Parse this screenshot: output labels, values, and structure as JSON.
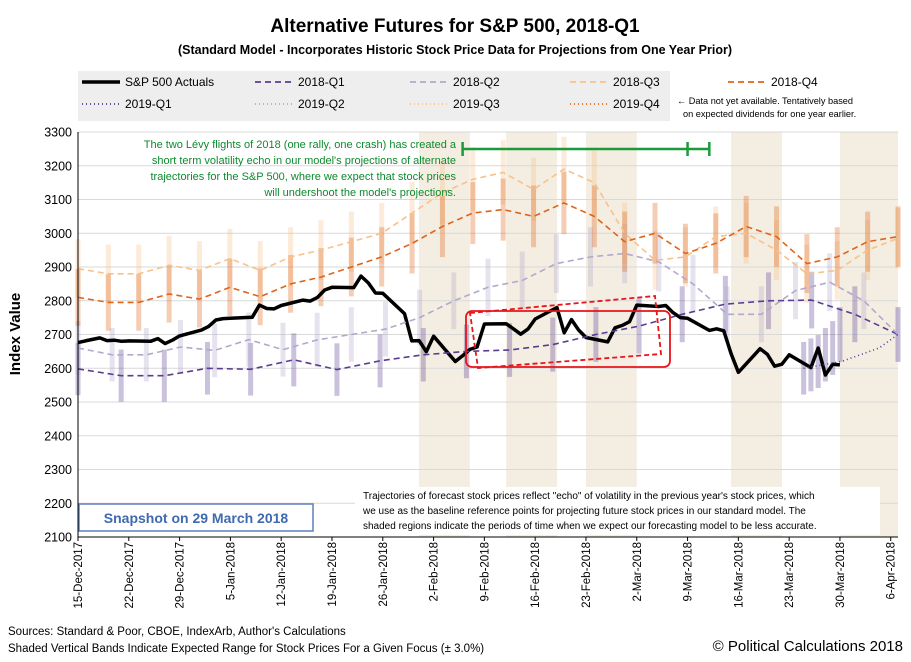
{
  "chart_data": {
    "type": "line",
    "title": "Alternative Futures for S&P 500, 2018-Q1",
    "subtitle": "(Standard Model - Incorporates Historic Stock Price Data for Projections from One Year Prior)",
    "ylabel": "Index Value",
    "xlabel": "",
    "ylim": [
      2100,
      3300
    ],
    "y_ticks": [
      "2100",
      "2200",
      "2300",
      "2400",
      "2500",
      "2600",
      "2700",
      "2800",
      "2900",
      "3000",
      "3100",
      "3200",
      "3300"
    ],
    "x_ticks": [
      "15-Dec-2017",
      "22-Dec-2017",
      "29-Dec-2017",
      "5-Jan-2018",
      "12-Jan-2018",
      "19-Jan-2018",
      "26-Jan-2018",
      "2-Feb-2018",
      "9-Feb-2018",
      "16-Feb-2018",
      "23-Feb-2018",
      "2-Mar-2018",
      "9-Mar-2018",
      "16-Mar-2018",
      "23-Mar-2018",
      "30-Mar-2018",
      "6-Apr-2018"
    ],
    "x_range_days": [
      0,
      113
    ],
    "band_pct": 3.0,
    "series": [
      {
        "name": "S&P 500 Actuals",
        "key": "actuals",
        "color": "#000000",
        "x": [
          0,
          1,
          3,
          4,
          5,
          6,
          7,
          10,
          11,
          12,
          13,
          14,
          17,
          18,
          19,
          20,
          21,
          24,
          25,
          26,
          27,
          28,
          31,
          32,
          33,
          34,
          35,
          38,
          39,
          40,
          41,
          42,
          45,
          46,
          47,
          48,
          49,
          52,
          53,
          54,
          55,
          56,
          59,
          60,
          61,
          62,
          63,
          66,
          67,
          68,
          69,
          70,
          73,
          74,
          75,
          76,
          77,
          80,
          81,
          82,
          83,
          84,
          87,
          88,
          89,
          90,
          91,
          94,
          95,
          96,
          97,
          98,
          101,
          102,
          103,
          104,
          105
        ],
        "values": [
          2676,
          2681,
          2690,
          2682,
          2683,
          2680,
          2681,
          2680,
          2688,
          2673,
          2683,
          2696,
          2713,
          2724,
          2743,
          2747,
          2748,
          2751,
          2787,
          2777,
          2776,
          2786,
          2802,
          2799,
          2810,
          2832,
          2840,
          2839,
          2873,
          2853,
          2823,
          2822,
          2762,
          2681,
          2682,
          2649,
          2695,
          2620,
          2637,
          2656,
          2663,
          2731,
          2732,
          2717,
          2701,
          2716,
          2746,
          2780,
          2705,
          2744,
          2713,
          2691,
          2678,
          2720,
          2727,
          2738,
          2787,
          2783,
          2786,
          2765,
          2750,
          2748,
          2712,
          2717,
          2711,
          2643,
          2588,
          2658,
          2641,
          2606,
          2612,
          2640,
          2602,
          2660,
          2580,
          2612,
          2610
        ]
      },
      {
        "name": "2018-Q1",
        "key": "q1_2018",
        "color": "#5a3d91",
        "dash": "6,4",
        "values": [
          2598,
          2578,
          2578,
          2600,
          2597,
          2625,
          2596,
          2622,
          2640,
          2650,
          2654,
          2670,
          2700,
          2725,
          2760,
          2790,
          2800,
          2802,
          2760,
          2700
        ]
      },
      {
        "name": "2018-Q2",
        "key": "q2_2018",
        "color": "#b2a8cc",
        "dash": "6,4",
        "values": [
          2660,
          2640,
          2640,
          2663,
          2653,
          2685,
          2655,
          2684,
          2700,
          2716,
          2750,
          2800,
          2840,
          2860,
          2910,
          2930,
          2940,
          2915,
          2850,
          2760,
          2760,
          2830,
          2855,
          2800,
          2700
        ]
      },
      {
        "name": "2018-Q3",
        "key": "q3_2018",
        "color": "#f7c28a",
        "dash": "6,4",
        "values": [
          2895,
          2880,
          2880,
          2905,
          2890,
          2925,
          2890,
          2930,
          2950,
          2975,
          3000,
          3060,
          3120,
          3160,
          3180,
          3130,
          3190,
          3150,
          3000,
          2920,
          2930,
          2990,
          3000,
          2950,
          2880,
          2890,
          2950,
          2985
        ]
      },
      {
        "name": "2018-Q4",
        "key": "q4_2018",
        "color": "#e06418",
        "dash": "6,4",
        "values": [
          2810,
          2795,
          2795,
          2820,
          2805,
          2840,
          2812,
          2850,
          2870,
          2900,
          2930,
          2970,
          3020,
          3060,
          3070,
          3050,
          3090,
          3050,
          2975,
          3000,
          2940,
          2970,
          3020,
          2990,
          2910,
          2930,
          2975,
          2990
        ]
      },
      {
        "name": "2019-Q1",
        "key": "q1_2019",
        "color": "#5a3d91",
        "dash": "1,3",
        "values": [
          2600,
          2610,
          2620,
          2640,
          2660,
          2700
        ]
      },
      {
        "name": "2019-Q2",
        "key": "q2_2019",
        "color": "#b2a8cc",
        "dash": "1,3",
        "values": []
      },
      {
        "name": "2019-Q3",
        "key": "q3_2019",
        "color": "#f7c28a",
        "dash": "1,3",
        "values": []
      },
      {
        "name": "2019-Q4",
        "key": "q4_2019",
        "color": "#e06418",
        "dash": "1,3",
        "values": []
      }
    ],
    "shaded_periods_days": [
      [
        47,
        54
      ],
      [
        59,
        66
      ],
      [
        70,
        77
      ],
      [
        90,
        97
      ],
      [
        105,
        113
      ]
    ],
    "annotations": {
      "levy_note": [
        "The two Lévy flights of 2018 (one rally, one crash) has created a",
        "short term  volatility echo in our model's projections of alternate",
        "trajectories  for the S&P 500, where we expect that stock prices",
        "will undershoot the model's projections."
      ],
      "echo_period_days": [
        53,
        87
      ],
      "echo_period_marker_day": 84,
      "trajectories_note": [
        "Trajectories of forecast stock prices reflect \"echo\" of volatility in  the previous year's stock prices, which",
        "we use as the baseline reference points for projecting future stock prices in our standard model.   The",
        "shaded regions indicate the periods of time when we expect our forecasting model to be less accurate."
      ],
      "not_available_note": [
        "← Data not yet available. Tentatively based",
        "on expected dividends for one year earlier."
      ],
      "snapshot": "Snapshot on 29 March 2018",
      "sources": "Sources: Standard & Poor, CBOE, IndexArb, Author's Calculations",
      "bands_note": "Shaded Vertical Bands Indicate Expected Range for Stock Prices For a Given Focus (± 3.0%)",
      "copyright": "© Political Calculations 2018"
    }
  }
}
